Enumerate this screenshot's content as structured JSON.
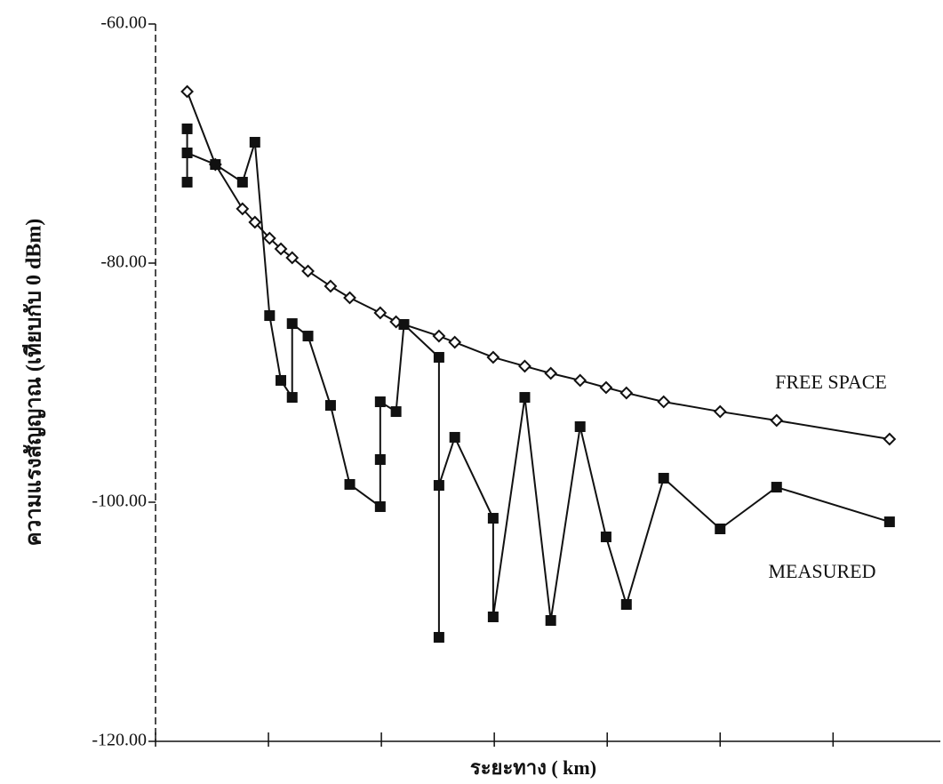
{
  "chart_data": {
    "type": "line",
    "y_label": "ความแรงสัญญาณ (เทียบกับ 0 dBm)",
    "x_label": "ระยะทาง ( km)",
    "xlim": [
      0,
      6.95
    ],
    "xticks": [
      0,
      1,
      2,
      3,
      4,
      5,
      6
    ],
    "ylim": [
      -120,
      -60
    ],
    "yticks": [
      {
        "value": -60,
        "label": "-60.00"
      },
      {
        "value": -80,
        "label": "-80.00"
      },
      {
        "value": -100,
        "label": "-100.00"
      },
      {
        "value": -120,
        "label": "-120.00"
      }
    ],
    "series": [
      {
        "name": "FREE SPACE",
        "color": "#111111",
        "marker": "diamond",
        "x": [
          0.28,
          0.53,
          0.77,
          0.88,
          1.01,
          1.11,
          1.21,
          1.35,
          1.55,
          1.72,
          1.99,
          2.13,
          2.51,
          2.65,
          2.99,
          3.27,
          3.5,
          3.76,
          3.99,
          4.17,
          4.5,
          5.0,
          5.5,
          6.5
        ],
        "values": [
          -65.65,
          -71.75,
          -75.46,
          -76.58,
          -77.92,
          -78.81,
          -79.55,
          -80.67,
          -81.93,
          -82.9,
          -84.16,
          -84.91,
          -86.1,
          -86.62,
          -87.88,
          -88.62,
          -89.22,
          -89.81,
          -90.41,
          -90.86,
          -91.6,
          -92.42,
          -93.16,
          -94.72
        ]
      },
      {
        "name": "MEASURED",
        "color": "#111111",
        "marker": "square",
        "x": [
          0.28,
          0.28,
          0.28,
          0.53,
          0.77,
          0.88,
          1.01,
          1.11,
          1.21,
          1.21,
          1.35,
          1.55,
          1.72,
          1.99,
          1.99,
          1.99,
          2.13,
          2.2,
          2.51,
          2.51,
          2.51,
          2.65,
          2.99,
          2.99,
          3.27,
          3.5,
          3.76,
          3.99,
          4.17,
          4.5,
          5.0,
          5.5,
          6.5
        ],
        "values": [
          -68.77,
          -73.23,
          -70.78,
          -71.75,
          -73.23,
          -69.89,
          -84.39,
          -89.81,
          -91.23,
          -85.06,
          -86.1,
          -91.9,
          -98.51,
          -100.37,
          -96.43,
          -91.6,
          -92.42,
          -85.13,
          -87.88,
          -111.3,
          -98.59,
          -94.57,
          -101.34,
          -109.59,
          -91.23,
          -109.89,
          -93.68,
          -102.9,
          -108.55,
          -97.99,
          -102.23,
          -98.74,
          -101.64
        ]
      }
    ]
  }
}
